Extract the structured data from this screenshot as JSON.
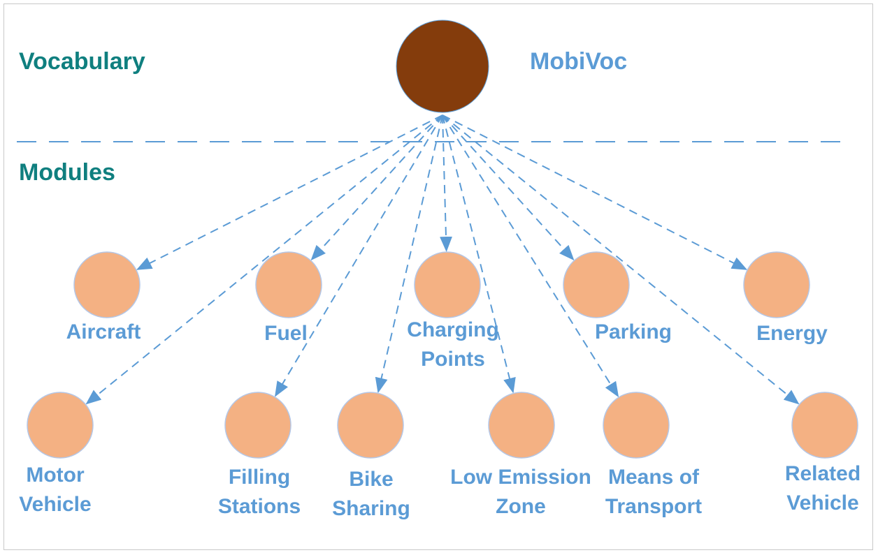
{
  "sections": {
    "vocabulary": "Vocabulary",
    "modules": "Modules"
  },
  "root": {
    "label": "MobiVoc",
    "color": "#843c0c"
  },
  "modules": [
    {
      "id": "aircraft",
      "lines": [
        "Aircraft"
      ]
    },
    {
      "id": "fuel",
      "lines": [
        "Fuel"
      ]
    },
    {
      "id": "charging-points",
      "lines": [
        "Charging",
        "Points"
      ]
    },
    {
      "id": "parking",
      "lines": [
        "Parking"
      ]
    },
    {
      "id": "energy",
      "lines": [
        "Energy"
      ]
    },
    {
      "id": "motor-vehicle",
      "lines": [
        "Motor",
        "Vehicle"
      ]
    },
    {
      "id": "filling-stations",
      "lines": [
        "Filling",
        "Stations"
      ]
    },
    {
      "id": "bike-sharing",
      "lines": [
        "Bike",
        "Sharing"
      ]
    },
    {
      "id": "low-emission-zone",
      "lines": [
        "Low Emission",
        "Zone"
      ]
    },
    {
      "id": "means-of-transport",
      "lines": [
        "Means of",
        "Transport"
      ]
    },
    {
      "id": "related-vehicle",
      "lines": [
        "Related",
        "Vehicle"
      ]
    }
  ],
  "colors": {
    "module_fill": "#f4b183",
    "module_stroke": "#b4c7e7",
    "arrow": "#5b9bd5",
    "section_text": "#0f7f7f",
    "module_text": "#5b9bd5"
  }
}
